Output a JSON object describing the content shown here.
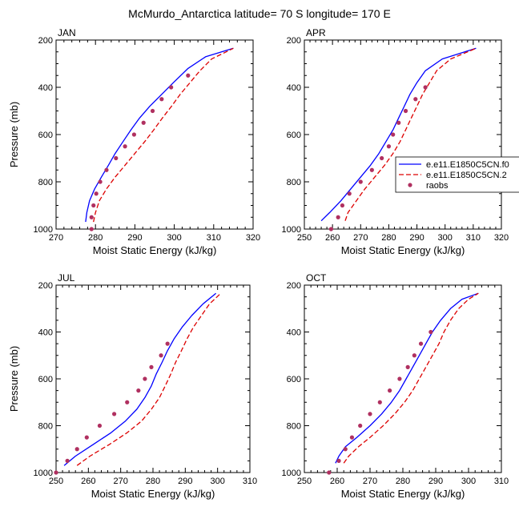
{
  "title": "McMurdo_Antarctica  latitude= 70 S longitude= 170 E",
  "legend": {
    "entries": [
      {
        "label": "e.e11.E1850C5CN.f0",
        "color": "#0000ff",
        "style": "solid"
      },
      {
        "label": "e.e11.E1850C5CN.2",
        "color": "#dd0000",
        "style": "dashed"
      },
      {
        "label": "raobs",
        "color": "#b03060",
        "style": "marker"
      }
    ]
  },
  "chart_data": [
    {
      "type": "line",
      "panel_label": "JAN",
      "xlabel": "Moist Static Energy (kJ/kg)",
      "ylabel": "Pressure (mb)",
      "xlim": [
        270,
        320
      ],
      "xticks": [
        270,
        280,
        290,
        300,
        310,
        320
      ],
      "ylim": [
        1000,
        200
      ],
      "yticks": [
        200,
        400,
        600,
        800,
        1000
      ],
      "series": [
        {
          "name": "e.e11.E1850C5CN.f0",
          "pressure": [
            970,
            930,
            880,
            830,
            780,
            730,
            680,
            630,
            580,
            530,
            480,
            430,
            380,
            320,
            270,
            235
          ],
          "mse": [
            277.5,
            277.8,
            278.5,
            279.8,
            281.5,
            283.3,
            285.0,
            287.0,
            289.0,
            291.2,
            293.8,
            296.8,
            299.8,
            303.5,
            308.0,
            315.0
          ]
        },
        {
          "name": "e.e11.E1850C5CN.2",
          "pressure": [
            970,
            930,
            880,
            830,
            780,
            730,
            680,
            630,
            580,
            530,
            480,
            430,
            380,
            330,
            280,
            235
          ],
          "mse": [
            279.5,
            280.0,
            281.0,
            282.8,
            285.0,
            287.5,
            290.0,
            292.5,
            294.8,
            297.0,
            299.3,
            301.5,
            304.0,
            306.5,
            309.5,
            315.0
          ]
        },
        {
          "name": "raobs",
          "pressure": [
            1000,
            950,
            900,
            850,
            800,
            750,
            700,
            650,
            600,
            550,
            500,
            450,
            400,
            350
          ],
          "mse": [
            279.0,
            279.0,
            279.5,
            280.2,
            281.2,
            282.8,
            285.2,
            287.5,
            289.8,
            292.2,
            294.5,
            296.8,
            299.2,
            303.5
          ]
        }
      ]
    },
    {
      "type": "line",
      "panel_label": "APR",
      "xlabel": "Moist Static Energy (kJ/kg)",
      "ylabel": "",
      "xlim": [
        250,
        320
      ],
      "xticks": [
        250,
        260,
        270,
        280,
        290,
        300,
        310,
        320
      ],
      "ylim": [
        1000,
        200
      ],
      "yticks": [
        200,
        400,
        600,
        800,
        1000
      ],
      "series": [
        {
          "name": "e.e11.E1850C5CN.f0",
          "pressure": [
            965,
            930,
            880,
            830,
            780,
            730,
            680,
            630,
            580,
            530,
            480,
            430,
            380,
            330,
            280,
            235
          ],
          "mse": [
            256.0,
            259.0,
            263.0,
            266.5,
            270.0,
            273.5,
            276.5,
            279.0,
            281.5,
            283.5,
            285.5,
            287.5,
            290.0,
            293.0,
            299.0,
            311.0
          ]
        },
        {
          "name": "e.e11.E1850C5CN.2",
          "pressure": [
            965,
            930,
            880,
            830,
            780,
            730,
            680,
            630,
            580,
            530,
            480,
            430,
            380,
            330,
            280,
            235
          ],
          "mse": [
            264.5,
            265.5,
            268.5,
            271.5,
            275.0,
            278.5,
            281.5,
            284.0,
            286.0,
            288.0,
            290.0,
            292.0,
            294.5,
            297.0,
            302.0,
            311.0
          ]
        },
        {
          "name": "raobs",
          "pressure": [
            1000,
            950,
            900,
            850,
            800,
            750,
            700,
            650,
            600,
            550,
            500,
            450,
            400
          ],
          "mse": [
            259.5,
            262.0,
            263.5,
            266.0,
            270.0,
            274.0,
            277.5,
            280.0,
            281.5,
            283.5,
            286.0,
            289.5,
            293.0
          ]
        }
      ]
    },
    {
      "type": "line",
      "panel_label": "JUL",
      "xlabel": "Moist Static Energy (kJ/kg)",
      "ylabel": "Pressure (mb)",
      "xlim": [
        250,
        310
      ],
      "xticks": [
        250,
        260,
        270,
        280,
        290,
        300,
        310
      ],
      "ylim": [
        1000,
        200
      ],
      "yticks": [
        200,
        400,
        600,
        800,
        1000
      ],
      "series": [
        {
          "name": "e.e11.E1850C5CN.f0",
          "pressure": [
            970,
            930,
            880,
            830,
            780,
            730,
            680,
            630,
            580,
            530,
            480,
            430,
            380,
            330,
            280,
            235
          ],
          "mse": [
            252.5,
            256.0,
            261.5,
            267.0,
            271.5,
            275.0,
            277.5,
            279.5,
            281.0,
            282.8,
            284.5,
            286.5,
            289.0,
            292.0,
            295.5,
            299.5
          ]
        },
        {
          "name": "e.e11.E1850C5CN.2",
          "pressure": [
            970,
            930,
            880,
            830,
            780,
            730,
            680,
            630,
            580,
            530,
            480,
            430,
            380,
            330,
            280,
            235
          ],
          "mse": [
            256.5,
            260.5,
            266.5,
            272.0,
            276.5,
            279.5,
            282.0,
            283.8,
            285.5,
            287.0,
            288.8,
            290.5,
            292.5,
            295.0,
            297.5,
            301.0
          ]
        },
        {
          "name": "raobs",
          "pressure": [
            1000,
            950,
            900,
            850,
            800,
            750,
            700,
            650,
            600,
            550,
            500,
            450
          ],
          "mse": [
            250.0,
            253.5,
            256.5,
            259.5,
            263.5,
            268.0,
            272.0,
            275.5,
            277.5,
            279.5,
            282.5,
            284.5
          ]
        }
      ]
    },
    {
      "type": "line",
      "panel_label": "OCT",
      "xlabel": "Moist Static Energy (kJ/kg)",
      "ylabel": "",
      "xlim": [
        250,
        310
      ],
      "xticks": [
        250,
        260,
        270,
        280,
        290,
        300,
        310
      ],
      "ylim": [
        1000,
        200
      ],
      "yticks": [
        200,
        400,
        600,
        800,
        1000
      ],
      "series": [
        {
          "name": "e.e11.E1850C5CN.f0",
          "pressure": [
            960,
            930,
            890,
            850,
            800,
            750,
            700,
            650,
            600,
            550,
            500,
            450,
            400,
            350,
            300,
            260,
            235
          ],
          "mse": [
            259.5,
            260.5,
            262.5,
            266.0,
            270.0,
            273.5,
            276.5,
            279.0,
            281.0,
            283.0,
            285.0,
            287.0,
            289.0,
            291.5,
            294.5,
            298.0,
            303.0
          ]
        },
        {
          "name": "e.e11.E1850C5CN.2",
          "pressure": [
            960,
            930,
            890,
            850,
            800,
            750,
            700,
            650,
            600,
            550,
            500,
            450,
            400,
            350,
            300,
            260,
            235
          ],
          "mse": [
            262.0,
            263.5,
            266.5,
            270.0,
            274.0,
            277.5,
            280.5,
            283.0,
            285.0,
            287.0,
            289.0,
            291.0,
            292.5,
            294.5,
            297.0,
            300.0,
            303.0
          ]
        },
        {
          "name": "raobs",
          "pressure": [
            1000,
            950,
            900,
            850,
            800,
            750,
            700,
            650,
            600,
            550,
            500,
            450,
            400
          ],
          "mse": [
            257.5,
            260.5,
            262.5,
            264.5,
            267.0,
            270.0,
            273.0,
            276.0,
            279.0,
            281.5,
            283.5,
            285.5,
            288.5
          ]
        }
      ]
    }
  ]
}
